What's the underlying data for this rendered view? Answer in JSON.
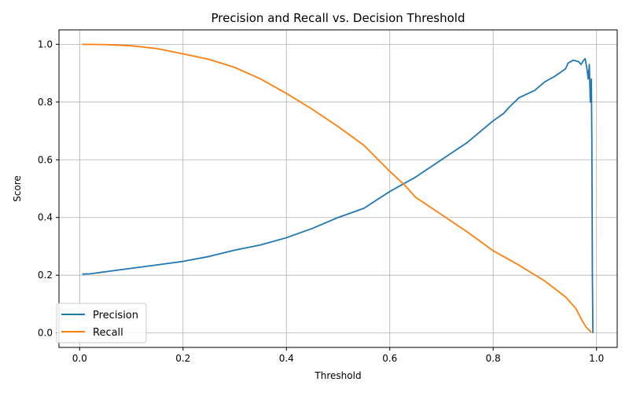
{
  "chart_data": {
    "type": "line",
    "title": "Precision and Recall vs. Decision Threshold",
    "xlabel": "Threshold",
    "ylabel": "Score",
    "xlim": [
      -0.04,
      1.04
    ],
    "ylim": [
      -0.05,
      1.05
    ],
    "xticks": [
      0.0,
      0.2,
      0.4,
      0.6,
      0.8,
      1.0
    ],
    "yticks": [
      0.0,
      0.2,
      0.4,
      0.6,
      0.8,
      1.0
    ],
    "xtick_labels": [
      "0.0",
      "0.2",
      "0.4",
      "0.6",
      "0.8",
      "1.0"
    ],
    "ytick_labels": [
      "0.0",
      "0.2",
      "0.4",
      "0.6",
      "0.8",
      "1.0"
    ],
    "grid": true,
    "legend_position": "lower-left",
    "series": [
      {
        "name": "Precision",
        "color": "#1f77b4",
        "points": [
          [
            0.005,
            0.204
          ],
          [
            0.02,
            0.205
          ],
          [
            0.05,
            0.212
          ],
          [
            0.1,
            0.224
          ],
          [
            0.15,
            0.236
          ],
          [
            0.2,
            0.248
          ],
          [
            0.25,
            0.265
          ],
          [
            0.3,
            0.287
          ],
          [
            0.35,
            0.305
          ],
          [
            0.4,
            0.33
          ],
          [
            0.45,
            0.362
          ],
          [
            0.5,
            0.4
          ],
          [
            0.55,
            0.432
          ],
          [
            0.6,
            0.49
          ],
          [
            0.65,
            0.54
          ],
          [
            0.7,
            0.6
          ],
          [
            0.75,
            0.66
          ],
          [
            0.8,
            0.735
          ],
          [
            0.82,
            0.76
          ],
          [
            0.83,
            0.78
          ],
          [
            0.85,
            0.815
          ],
          [
            0.88,
            0.84
          ],
          [
            0.9,
            0.87
          ],
          [
            0.92,
            0.89
          ],
          [
            0.94,
            0.915
          ],
          [
            0.945,
            0.935
          ],
          [
            0.955,
            0.945
          ],
          [
            0.965,
            0.94
          ],
          [
            0.97,
            0.93
          ],
          [
            0.975,
            0.945
          ],
          [
            0.978,
            0.95
          ],
          [
            0.981,
            0.92
          ],
          [
            0.984,
            0.88
          ],
          [
            0.986,
            0.93
          ],
          [
            0.988,
            0.8
          ],
          [
            0.99,
            0.88
          ],
          [
            0.991,
            0.65
          ],
          [
            0.992,
            0.2
          ],
          [
            0.993,
            0.0
          ]
        ]
      },
      {
        "name": "Recall",
        "color": "#ff7f0e",
        "points": [
          [
            0.005,
            1.0
          ],
          [
            0.05,
            0.999
          ],
          [
            0.1,
            0.995
          ],
          [
            0.15,
            0.985
          ],
          [
            0.2,
            0.967
          ],
          [
            0.25,
            0.948
          ],
          [
            0.3,
            0.92
          ],
          [
            0.35,
            0.88
          ],
          [
            0.4,
            0.83
          ],
          [
            0.45,
            0.775
          ],
          [
            0.5,
            0.715
          ],
          [
            0.55,
            0.65
          ],
          [
            0.6,
            0.56
          ],
          [
            0.63,
            0.51
          ],
          [
            0.65,
            0.47
          ],
          [
            0.7,
            0.41
          ],
          [
            0.75,
            0.35
          ],
          [
            0.8,
            0.285
          ],
          [
            0.85,
            0.235
          ],
          [
            0.9,
            0.18
          ],
          [
            0.94,
            0.125
          ],
          [
            0.96,
            0.085
          ],
          [
            0.97,
            0.05
          ],
          [
            0.98,
            0.02
          ],
          [
            0.99,
            0.002
          ]
        ]
      }
    ]
  }
}
